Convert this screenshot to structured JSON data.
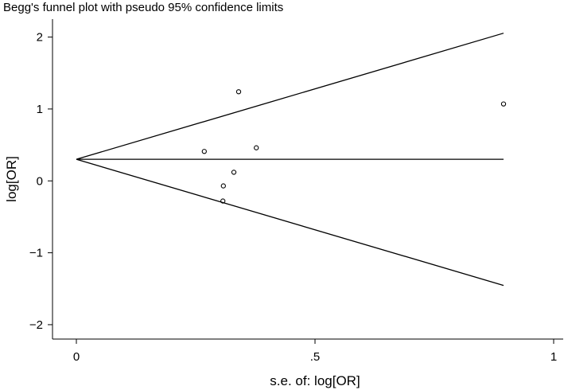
{
  "chart_data": {
    "type": "scatter",
    "title": "Begg's funnel plot with pseudo 95% confidence limits",
    "xlabel": "s.e. of: log[OR]",
    "ylabel": "log[OR]",
    "xlim": [
      -0.05,
      1.02
    ],
    "ylim": [
      -2.2,
      2.25
    ],
    "x_ticks": [
      {
        "value": 0,
        "label": "0"
      },
      {
        "value": 0.5,
        "label": ".5"
      },
      {
        "value": 1,
        "label": "1"
      }
    ],
    "y_ticks": [
      {
        "value": -2,
        "label": "−2"
      },
      {
        "value": -1,
        "label": "−1"
      },
      {
        "value": 0,
        "label": "0"
      },
      {
        "value": 1,
        "label": "1"
      },
      {
        "value": 2,
        "label": "2"
      }
    ],
    "grid": false,
    "pooled_estimate": 0.3,
    "max_se": 0.895,
    "pseudo_ci_z": 1.96,
    "series": [
      {
        "points": [
          {
            "x": 0.268,
            "y": 0.41
          },
          {
            "x": 0.308,
            "y": -0.07
          },
          {
            "x": 0.307,
            "y": -0.28
          },
          {
            "x": 0.33,
            "y": 0.12
          },
          {
            "x": 0.34,
            "y": 1.24
          },
          {
            "x": 0.377,
            "y": 0.46
          },
          {
            "x": 0.895,
            "y": 1.07
          }
        ]
      }
    ],
    "colors": {
      "line": "#000000",
      "marker": "#000000",
      "background": "#ffffff"
    }
  }
}
